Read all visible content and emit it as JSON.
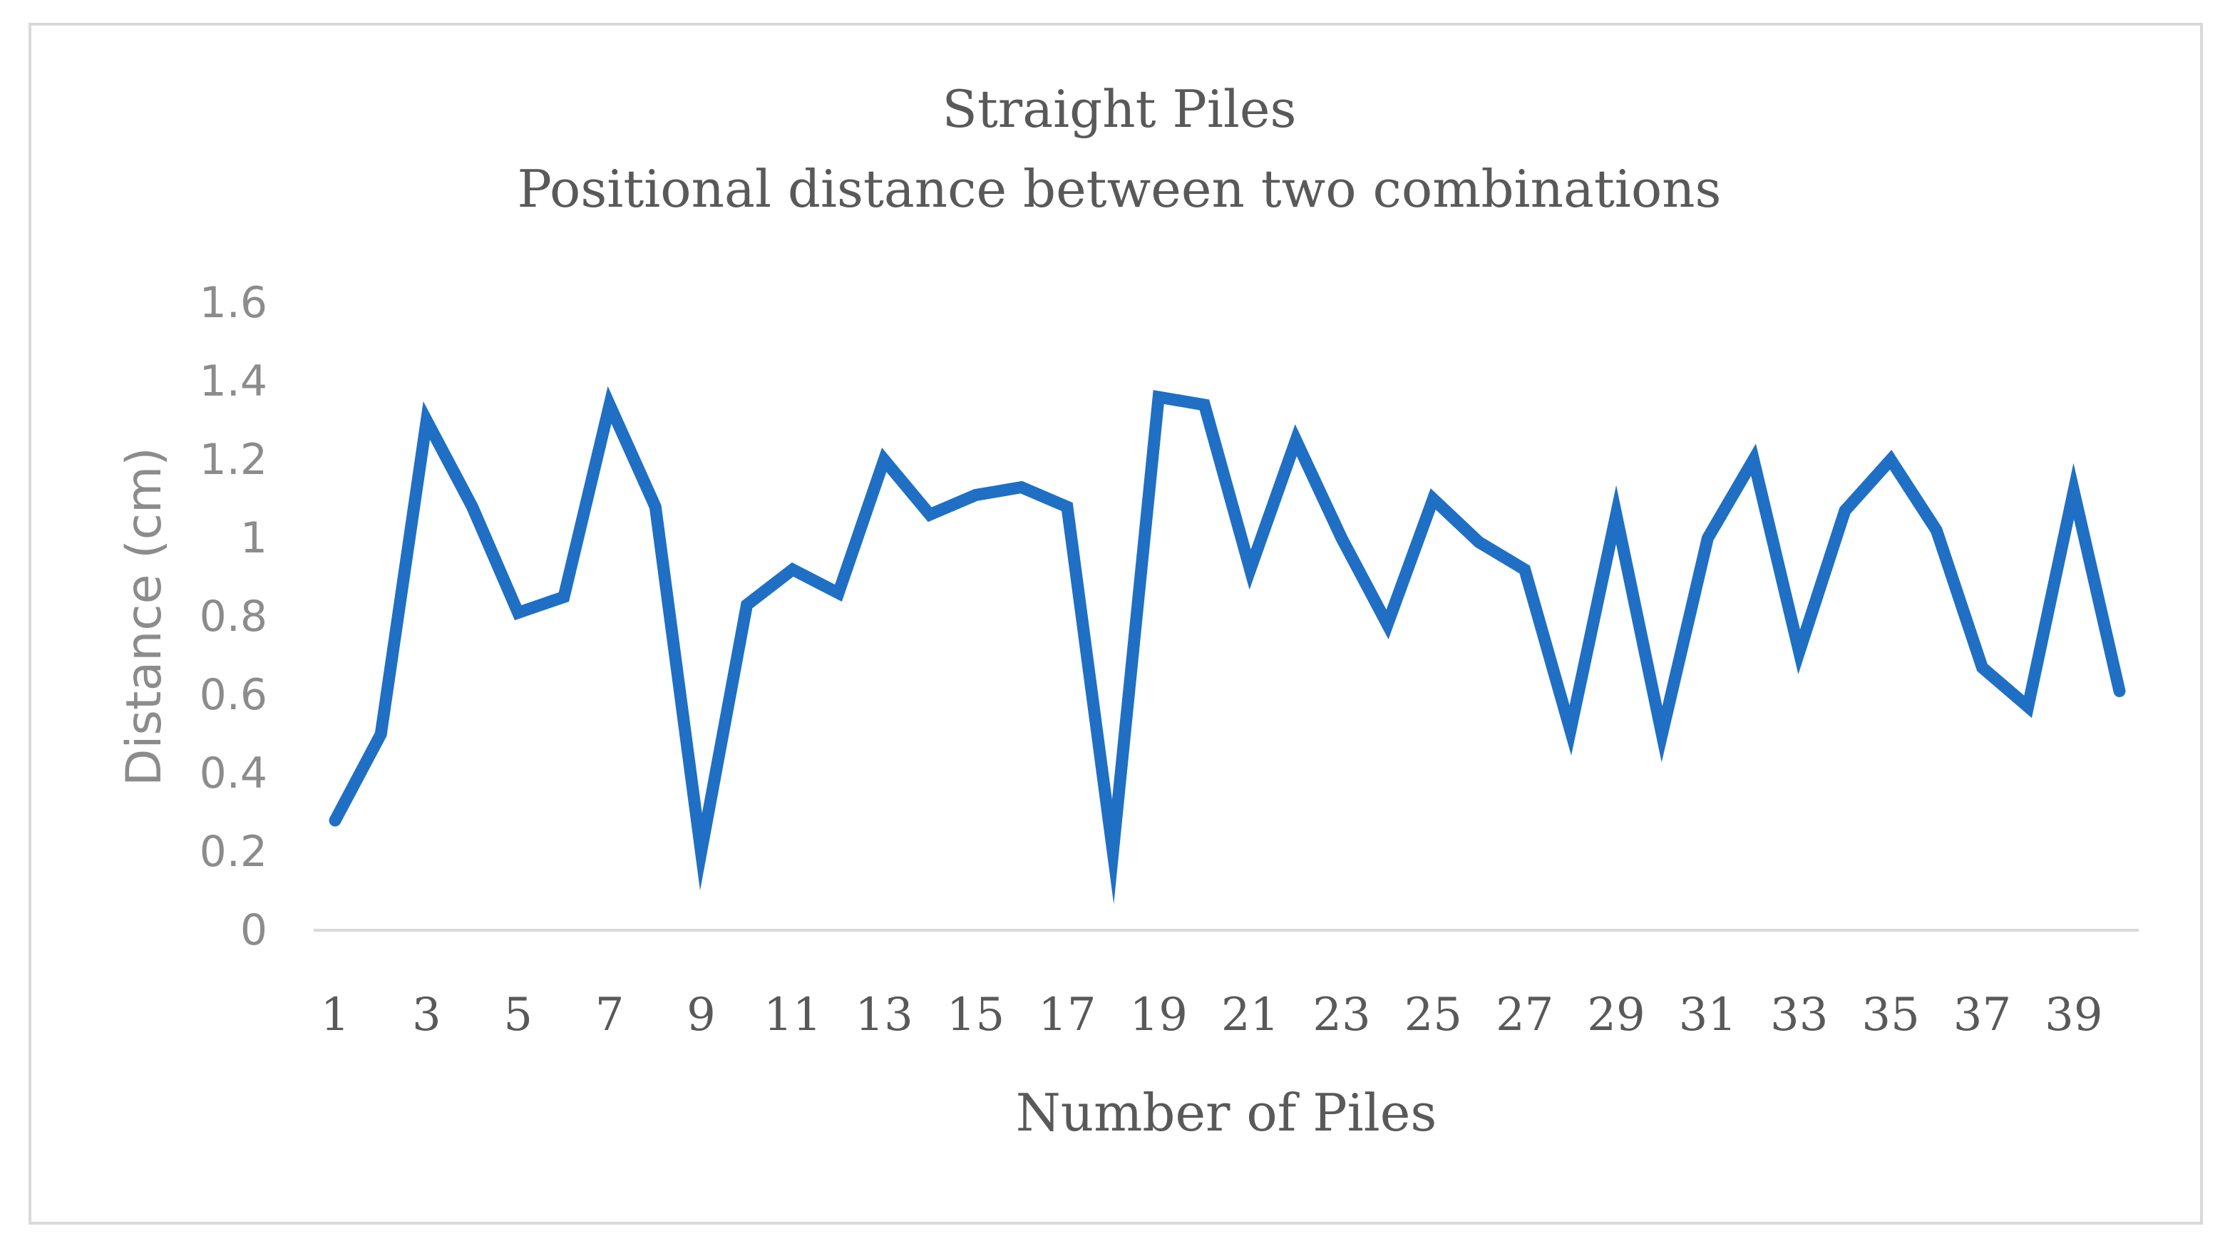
{
  "chart_data": {
    "type": "line",
    "title": "Straight Piles",
    "subtitle": "Positional distance between two combinations",
    "xlabel": "Number of Piles",
    "ylabel": "Distance (cm)",
    "ylim": [
      0,
      1.6
    ],
    "yticks": [
      "0",
      "0.2",
      "0.4",
      "0.6",
      "0.8",
      "1",
      "1.2",
      "1.4",
      "1.6"
    ],
    "x": [
      1,
      2,
      3,
      4,
      5,
      6,
      7,
      8,
      9,
      10,
      11,
      12,
      13,
      14,
      15,
      16,
      17,
      18,
      19,
      20,
      21,
      22,
      23,
      24,
      25,
      26,
      27,
      28,
      29,
      30,
      31,
      32,
      33,
      34,
      35,
      36,
      37,
      38,
      39,
      40
    ],
    "xtick_labels": [
      "1",
      "3",
      "5",
      "7",
      "9",
      "11",
      "13",
      "15",
      "17",
      "19",
      "21",
      "23",
      "25",
      "27",
      "29",
      "31",
      "33",
      "35",
      "37",
      "39"
    ],
    "grid": false,
    "legend": "none",
    "line_color": "#1f6fc5",
    "series": [
      {
        "values": [
          0.28,
          0.5,
          1.3,
          1.08,
          0.81,
          0.85,
          1.34,
          1.08,
          0.2,
          0.83,
          0.92,
          0.86,
          1.2,
          1.06,
          1.11,
          1.13,
          1.08,
          0.2,
          1.36,
          1.34,
          0.92,
          1.25,
          1.0,
          0.78,
          1.1,
          0.99,
          0.92,
          0.51,
          1.06,
          0.5,
          1.0,
          1.2,
          0.71,
          1.07,
          1.2,
          1.02,
          0.67,
          0.57,
          1.12,
          0.61
        ]
      }
    ]
  }
}
